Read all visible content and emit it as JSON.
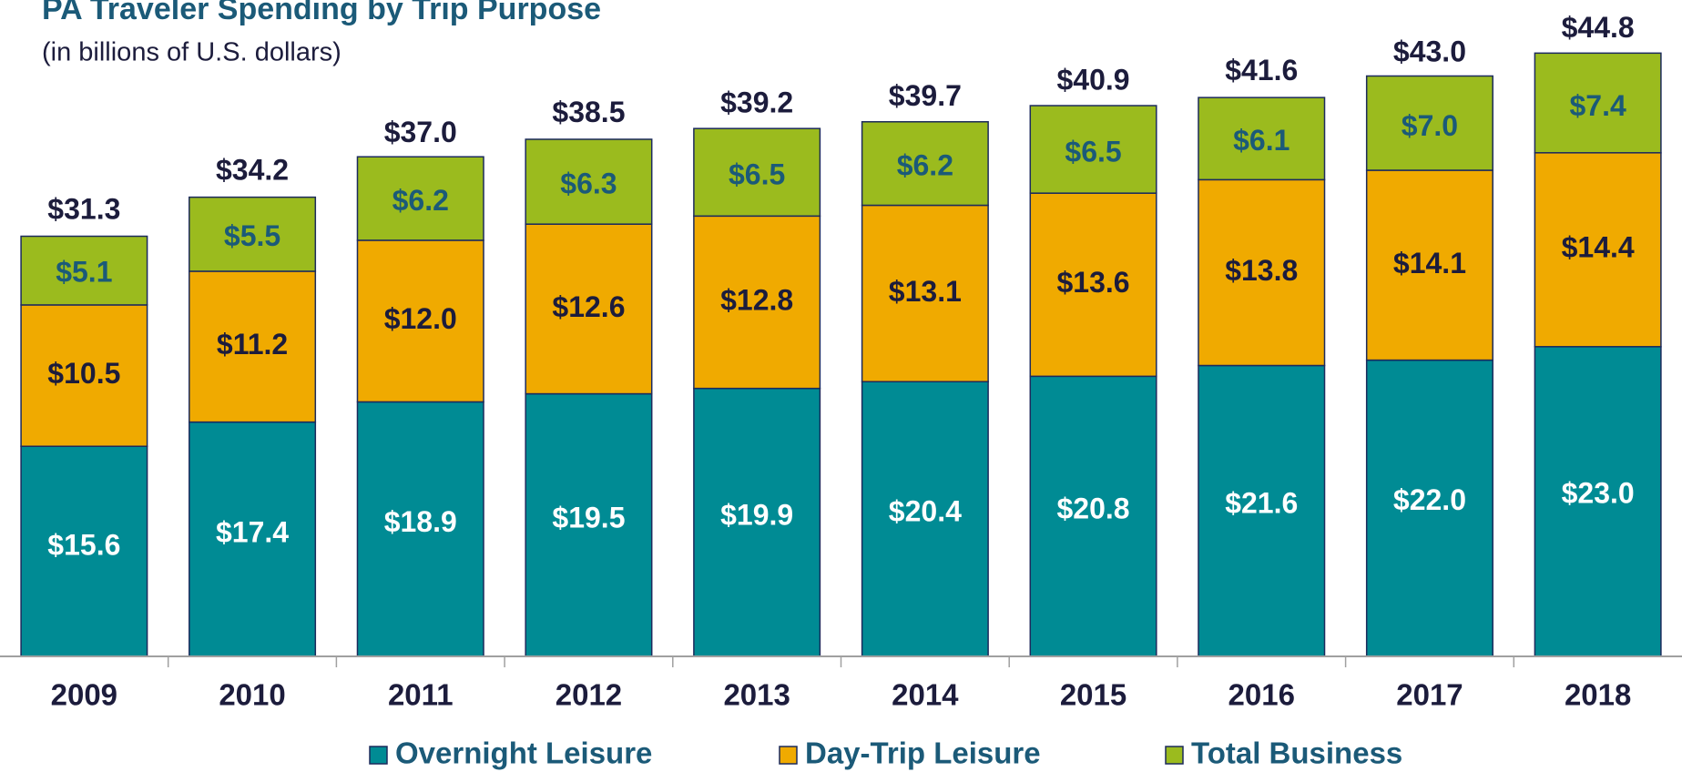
{
  "chart_data": {
    "type": "stacked_bar",
    "title": "PA Traveler Spending by Trip Purpose",
    "subtitle": "(in billions of U.S. dollars)",
    "categories": [
      "2009",
      "2010",
      "2011",
      "2012",
      "2013",
      "2014",
      "2015",
      "2016",
      "2017",
      "2018"
    ],
    "series": [
      {
        "name": "Overnight Leisure",
        "color": "#008b94",
        "label_color": "#ffffff",
        "values": [
          15.6,
          17.4,
          18.9,
          19.5,
          19.9,
          20.4,
          20.8,
          21.6,
          22.0,
          23.0
        ],
        "value_labels": [
          "$15.6",
          "$17.4",
          "$18.9",
          "$19.5",
          "$19.9",
          "$20.4",
          "$20.8",
          "$21.6",
          "$22.0",
          "$23.0"
        ]
      },
      {
        "name": "Day-Trip Leisure",
        "color": "#f0aa00",
        "label_color": "#1c1c3c",
        "values": [
          10.5,
          11.2,
          12.0,
          12.6,
          12.8,
          13.1,
          13.6,
          13.8,
          14.1,
          14.4
        ],
        "value_labels": [
          "$10.5",
          "$11.2",
          "$12.0",
          "$12.6",
          "$12.8",
          "$13.1",
          "$13.6",
          "$13.8",
          "$14.1",
          "$14.4"
        ]
      },
      {
        "name": "Total Business",
        "color": "#9bbb1e",
        "label_color": "#1b5a78",
        "values": [
          5.1,
          5.5,
          6.2,
          6.3,
          6.5,
          6.2,
          6.5,
          6.1,
          7.0,
          7.4
        ],
        "value_labels": [
          "$5.1",
          "$5.5",
          "$6.2",
          "$6.3",
          "$6.5",
          "$6.2",
          "$6.5",
          "$6.1",
          "$7.0",
          "$7.4"
        ]
      }
    ],
    "totals": [
      31.3,
      34.2,
      37.0,
      38.5,
      39.2,
      39.7,
      40.9,
      41.6,
      43.0,
      44.8
    ],
    "total_labels": [
      "$31.3",
      "$34.2",
      "$37.0",
      "$38.5",
      "$39.2",
      "$39.7",
      "$40.9",
      "$41.6",
      "$43.0",
      "$44.8"
    ],
    "ylim": [
      0,
      48
    ],
    "legend": "bottom"
  }
}
